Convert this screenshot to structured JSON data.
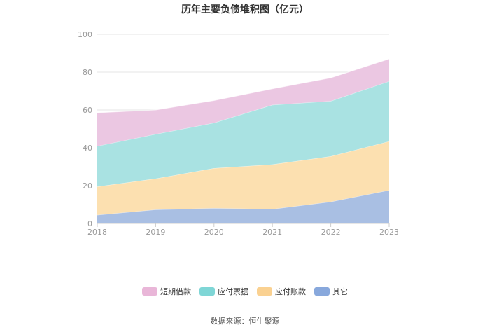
{
  "title": "历年主要负债堆积图（亿元）",
  "source": "数据来源：恒生聚源",
  "chart_data": {
    "type": "area",
    "stacked": true,
    "title": "历年主要负债堆积图（亿元）",
    "x": [
      "2018",
      "2019",
      "2020",
      "2021",
      "2022",
      "2023"
    ],
    "ylim": [
      0,
      100
    ],
    "yticks": [
      0,
      20,
      40,
      60,
      80,
      100
    ],
    "grid": true,
    "legend_position": "bottom",
    "series": [
      {
        "name": "其它",
        "values": [
          4.5,
          7.3,
          8.1,
          7.6,
          11.5,
          17.6
        ],
        "color": "#a9bfe3"
      },
      {
        "name": "应付账款",
        "values": [
          15.0,
          16.4,
          21.1,
          23.6,
          24.0,
          25.8
        ],
        "color": "#fce0b0"
      },
      {
        "name": "应付票据",
        "values": [
          21.4,
          23.5,
          24.0,
          31.5,
          29.2,
          31.8
        ],
        "color": "#a9e2e2"
      },
      {
        "name": "短期借款",
        "values": [
          17.6,
          12.8,
          11.8,
          8.5,
          12.3,
          11.8
        ],
        "color": "#ebc7e2"
      }
    ],
    "legend_order": [
      "短期借款",
      "应付票据",
      "应付账款",
      "其它"
    ],
    "legend_colors": {
      "短期借款": "#e9b6d8",
      "应付票据": "#7fd6d6",
      "应付账款": "#fad191",
      "其它": "#88a8dc"
    }
  }
}
